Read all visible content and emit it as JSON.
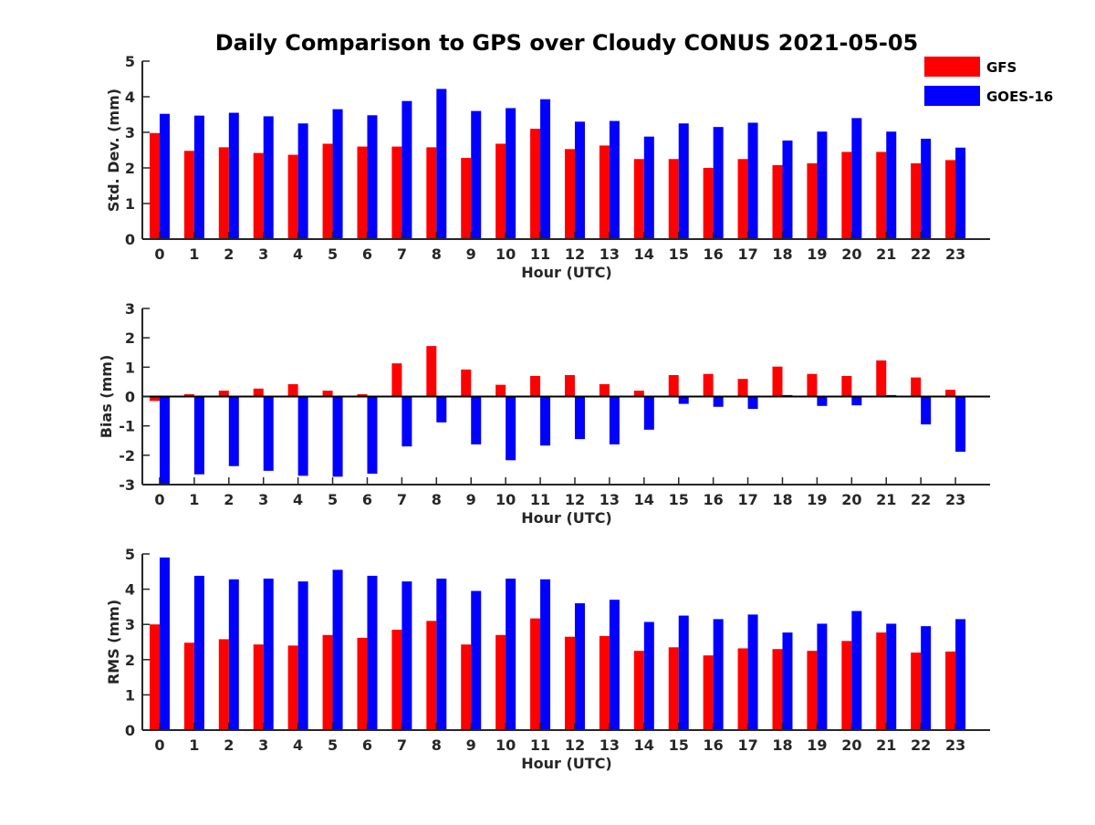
{
  "title": "Daily Comparison to GPS over Cloudy CONUS 2021-05-05",
  "colors": {
    "GFS": "#ff0000",
    "GOES-16": "#0000ff",
    "axis": "#262626"
  },
  "legend": [
    {
      "name": "GFS",
      "color": "#ff0000"
    },
    {
      "name": "GOES-16",
      "color": "#0000ff"
    }
  ],
  "chart_data": [
    {
      "type": "bar",
      "title": "Daily Comparison to GPS over Cloudy CONUS 2021-05-05",
      "xlabel": "Hour (UTC)",
      "ylabel": "Std. Dev. (mm)",
      "ylim": [
        0,
        5
      ],
      "yticks": [
        0,
        1,
        2,
        3,
        4,
        5
      ],
      "categories": [
        "0",
        "1",
        "2",
        "3",
        "4",
        "5",
        "6",
        "7",
        "8",
        "9",
        "10",
        "11",
        "12",
        "13",
        "14",
        "15",
        "16",
        "17",
        "18",
        "19",
        "20",
        "21",
        "22",
        "23"
      ],
      "legend": "top-right",
      "series": [
        {
          "name": "GFS",
          "values": [
            2.98,
            2.48,
            2.58,
            2.42,
            2.37,
            2.68,
            2.6,
            2.6,
            2.58,
            2.28,
            2.68,
            3.1,
            2.53,
            2.63,
            2.25,
            2.25,
            2.0,
            2.25,
            2.08,
            2.13,
            2.45,
            2.45,
            2.13,
            2.22
          ]
        },
        {
          "name": "GOES-16",
          "values": [
            3.52,
            3.47,
            3.55,
            3.45,
            3.25,
            3.65,
            3.48,
            3.88,
            4.22,
            3.6,
            3.68,
            3.93,
            3.3,
            3.32,
            2.88,
            3.25,
            3.15,
            3.27,
            2.77,
            3.02,
            3.4,
            3.02,
            2.82,
            2.57
          ]
        }
      ]
    },
    {
      "type": "bar",
      "xlabel": "Hour (UTC)",
      "ylabel": "Bias (mm)",
      "ylim": [
        -3,
        3
      ],
      "yticks": [
        -3,
        -2,
        -1,
        0,
        1,
        2,
        3
      ],
      "categories": [
        "0",
        "1",
        "2",
        "3",
        "4",
        "5",
        "6",
        "7",
        "8",
        "9",
        "10",
        "11",
        "12",
        "13",
        "14",
        "15",
        "16",
        "17",
        "18",
        "19",
        "20",
        "21",
        "22",
        "23"
      ],
      "series": [
        {
          "name": "GFS",
          "values": [
            -0.15,
            0.08,
            0.2,
            0.27,
            0.42,
            0.2,
            0.08,
            1.13,
            1.72,
            0.92,
            0.4,
            0.7,
            0.73,
            0.42,
            0.2,
            0.73,
            0.77,
            0.6,
            1.02,
            0.77,
            0.7,
            1.23,
            0.65,
            0.23
          ]
        },
        {
          "name": "GOES-16",
          "values": [
            -3.0,
            -2.65,
            -2.37,
            -2.53,
            -2.7,
            -2.73,
            -2.63,
            -1.7,
            -0.88,
            -1.63,
            -2.17,
            -1.67,
            -1.45,
            -1.63,
            -1.13,
            -0.25,
            -0.35,
            -0.42,
            0.05,
            -0.32,
            -0.3,
            0.05,
            -0.95,
            -1.88
          ]
        }
      ]
    },
    {
      "type": "bar",
      "xlabel": "Hour (UTC)",
      "ylabel": "RMS (mm)",
      "ylim": [
        0,
        5
      ],
      "yticks": [
        0,
        1,
        2,
        3,
        4,
        5
      ],
      "categories": [
        "0",
        "1",
        "2",
        "3",
        "4",
        "5",
        "6",
        "7",
        "8",
        "9",
        "10",
        "11",
        "12",
        "13",
        "14",
        "15",
        "16",
        "17",
        "18",
        "19",
        "20",
        "21",
        "22",
        "23"
      ],
      "series": [
        {
          "name": "GFS",
          "values": [
            3.0,
            2.48,
            2.58,
            2.43,
            2.4,
            2.7,
            2.62,
            2.85,
            3.1,
            2.43,
            2.7,
            3.17,
            2.65,
            2.67,
            2.25,
            2.35,
            2.12,
            2.32,
            2.3,
            2.25,
            2.53,
            2.77,
            2.2,
            2.23
          ]
        },
        {
          "name": "GOES-16",
          "values": [
            4.9,
            4.38,
            4.28,
            4.3,
            4.22,
            4.55,
            4.38,
            4.22,
            4.3,
            3.95,
            4.3,
            4.28,
            3.6,
            3.7,
            3.07,
            3.25,
            3.15,
            3.28,
            2.77,
            3.02,
            3.38,
            3.02,
            2.95,
            3.15
          ]
        }
      ]
    }
  ]
}
